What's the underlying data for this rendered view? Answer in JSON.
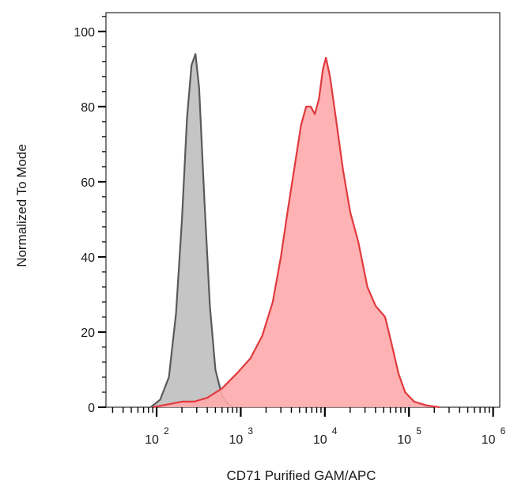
{
  "chart_data": {
    "type": "area",
    "title": "",
    "xlabel": "CD71 Purified GAM/APC",
    "ylabel": "Normalized To Mode",
    "x_scale": "log",
    "xlim": [
      25,
      1200000
    ],
    "ylim": [
      0,
      105
    ],
    "x_ticks": [
      {
        "value": 100,
        "base": "10",
        "exp": "2"
      },
      {
        "value": 1000,
        "base": "10",
        "exp": "3"
      },
      {
        "value": 10000,
        "base": "10",
        "exp": "4"
      },
      {
        "value": 100000,
        "base": "10",
        "exp": "5"
      },
      {
        "value": 1000000,
        "base": "10",
        "exp": "6"
      }
    ],
    "y_ticks": [
      0,
      20,
      40,
      60,
      80,
      100
    ],
    "grid": false,
    "legend": "none",
    "series": [
      {
        "color": "#5a5a5a",
        "fill": "#bfbfbf",
        "points": [
          [
            85,
            0
          ],
          [
            110,
            2
          ],
          [
            140,
            8
          ],
          [
            170,
            25
          ],
          [
            200,
            50
          ],
          [
            230,
            77
          ],
          [
            260,
            91
          ],
          [
            290,
            94
          ],
          [
            320,
            85
          ],
          [
            370,
            55
          ],
          [
            430,
            27
          ],
          [
            500,
            10
          ],
          [
            600,
            3
          ],
          [
            720,
            0.5
          ],
          [
            850,
            0
          ]
        ]
      },
      {
        "color": "#e03a3e",
        "fill": "#ffaaab",
        "points": [
          [
            90,
            0
          ],
          [
            140,
            0.8
          ],
          [
            200,
            1.5
          ],
          [
            280,
            1.5
          ],
          [
            400,
            2.5
          ],
          [
            600,
            5
          ],
          [
            900,
            9
          ],
          [
            1300,
            13
          ],
          [
            1800,
            19
          ],
          [
            2400,
            28
          ],
          [
            3000,
            40
          ],
          [
            3600,
            52
          ],
          [
            4300,
            63
          ],
          [
            5200,
            75
          ],
          [
            6000,
            80
          ],
          [
            6800,
            80
          ],
          [
            7600,
            78
          ],
          [
            8500,
            82
          ],
          [
            9500,
            90
          ],
          [
            10300,
            93
          ],
          [
            11500,
            88
          ],
          [
            13500,
            77
          ],
          [
            16500,
            63
          ],
          [
            20000,
            52
          ],
          [
            25000,
            44
          ],
          [
            32000,
            32
          ],
          [
            40000,
            27
          ],
          [
            52000,
            24
          ],
          [
            62000,
            17
          ],
          [
            75000,
            9
          ],
          [
            90000,
            4
          ],
          [
            115000,
            1.5
          ],
          [
            160000,
            0.5
          ],
          [
            230000,
            0
          ]
        ]
      }
    ]
  }
}
